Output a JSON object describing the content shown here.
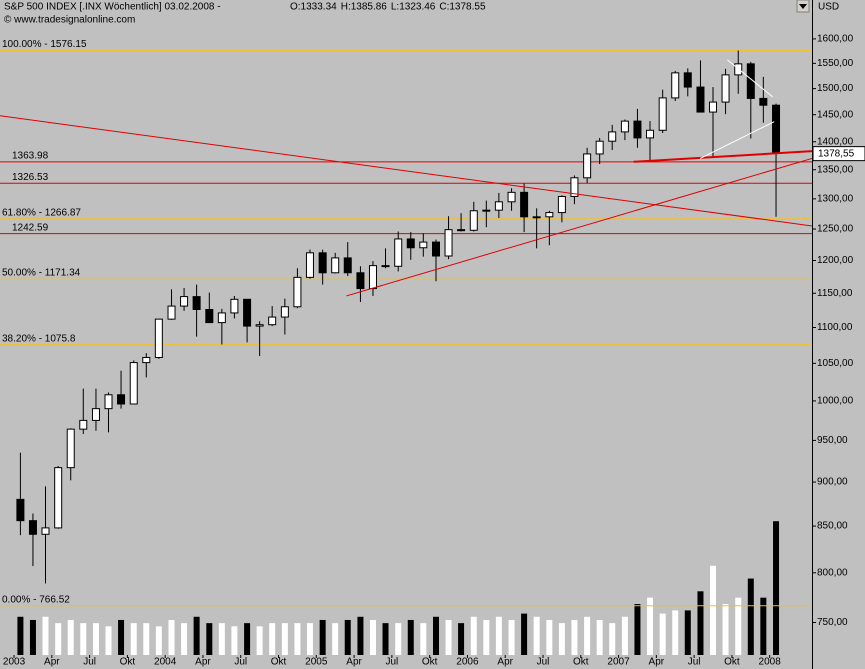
{
  "chart_data": {
    "type": "candlestick",
    "title": "S&P 500 INDEX [.INX  Wöchentlich] 03.02.2008 -",
    "quote": [
      "O:1333.34",
      "H:1385.86",
      "L:1323.46",
      "C:1378.55"
    ],
    "copyright": "© www.tradesignalonline.com",
    "ylabel": "USD",
    "log_scale": true,
    "xlim": [
      2002.907,
      2008.28
    ],
    "ylim": [
      719,
      1644
    ],
    "yticks": [
      {
        "value": 750,
        "label": "750,00"
      },
      {
        "value": 800,
        "label": "800,00"
      },
      {
        "value": 850,
        "label": "850,00"
      },
      {
        "value": 900,
        "label": "900,00"
      },
      {
        "value": 950,
        "label": "950,00"
      },
      {
        "value": 1000,
        "label": "1000,00"
      },
      {
        "value": 1050,
        "label": "1050,00"
      },
      {
        "value": 1100,
        "label": "1100,00"
      },
      {
        "value": 1150,
        "label": "1150,00"
      },
      {
        "value": 1200,
        "label": "1200,00"
      },
      {
        "value": 1250,
        "label": "1250,00"
      },
      {
        "value": 1300,
        "label": "1300,00"
      },
      {
        "value": 1350,
        "label": "1350,00"
      },
      {
        "value": 1400,
        "label": "1400,00"
      },
      {
        "value": 1450,
        "label": "1450,00"
      },
      {
        "value": 1500,
        "label": "1500,00"
      },
      {
        "value": 1550,
        "label": "1550,00"
      },
      {
        "value": 1600,
        "label": "1600,00"
      }
    ],
    "xticks": [
      2003,
      {
        "value": 2003.25,
        "label": "Apr"
      },
      {
        "value": 2003.5,
        "label": "Jul"
      },
      {
        "value": 2003.75,
        "label": "Okt"
      },
      2004,
      {
        "value": 2004.25,
        "label": "Apr"
      },
      {
        "value": 2004.5,
        "label": "Jul"
      },
      {
        "value": 2004.75,
        "label": "Okt"
      },
      2005,
      {
        "value": 2005.25,
        "label": "Apr"
      },
      {
        "value": 2005.5,
        "label": "Jul"
      },
      {
        "value": 2005.75,
        "label": "Okt"
      },
      2006,
      {
        "value": 2006.25,
        "label": "Apr"
      },
      {
        "value": 2006.5,
        "label": "Jul"
      },
      {
        "value": 2006.75,
        "label": "Okt"
      },
      2007,
      {
        "value": 2007.25,
        "label": "Apr"
      },
      {
        "value": 2007.5,
        "label": "Jul"
      },
      {
        "value": 2007.75,
        "label": "Okt"
      },
      2008
    ],
    "x": [
      2003.042,
      2003.125,
      2003.208,
      2003.292,
      2003.375,
      2003.458,
      2003.542,
      2003.625,
      2003.708,
      2003.792,
      2003.875,
      2003.958,
      2004.042,
      2004.125,
      2004.208,
      2004.292,
      2004.375,
      2004.458,
      2004.542,
      2004.625,
      2004.708,
      2004.792,
      2004.875,
      2004.958,
      2005.042,
      2005.125,
      2005.208,
      2005.292,
      2005.375,
      2005.458,
      2005.542,
      2005.625,
      2005.708,
      2005.792,
      2005.875,
      2005.958,
      2006.042,
      2006.125,
      2006.208,
      2006.292,
      2006.375,
      2006.458,
      2006.542,
      2006.625,
      2006.708,
      2006.792,
      2006.875,
      2006.958,
      2007.042,
      2007.125,
      2007.208,
      2007.292,
      2007.375,
      2007.458,
      2007.542,
      2007.625,
      2007.708,
      2007.792,
      2007.875,
      2007.958,
      2008.042
    ],
    "open": [
      880,
      856,
      841,
      848,
      917,
      964,
      975,
      990,
      1008,
      996,
      1051,
      1058,
      1112,
      1131,
      1145,
      1126,
      1107,
      1121,
      1141,
      1102,
      1104,
      1115,
      1130,
      1174,
      1212,
      1181,
      1204,
      1181,
      1157,
      1192,
      1191,
      1234,
      1220,
      1229,
      1207,
      1249,
      1248,
      1280,
      1281,
      1295,
      1311,
      1270,
      1270,
      1277,
      1304,
      1336,
      1378,
      1401,
      1418,
      1438,
      1407,
      1421,
      1482,
      1531,
      1503,
      1455,
      1474,
      1527,
      1549,
      1481,
      1468
    ],
    "high": [
      935,
      864,
      895,
      919,
      965,
      1016,
      1016,
      1011,
      1040,
      1054,
      1064,
      1112,
      1156,
      1158,
      1163,
      1151,
      1127,
      1146,
      1141,
      1109,
      1131,
      1142,
      1188,
      1217,
      1217,
      1212,
      1229,
      1191,
      1199,
      1219,
      1246,
      1245,
      1243,
      1233,
      1271,
      1276,
      1295,
      1297,
      1310,
      1318,
      1326,
      1284,
      1280,
      1306,
      1340,
      1389,
      1407,
      1431,
      1441,
      1461,
      1438,
      1498,
      1535,
      1540,
      1556,
      1503,
      1539,
      1576,
      1553,
      1523,
      1471
    ],
    "low": [
      840,
      807,
      789,
      847,
      902,
      958,
      962,
      960,
      990,
      996,
      1031,
      1056,
      1111,
      1124,
      1087,
      1107,
      1076,
      1113,
      1079,
      1060,
      1102,
      1090,
      1128,
      1172,
      1163,
      1180,
      1176,
      1137,
      1146,
      1188,
      1183,
      1201,
      1206,
      1168,
      1202,
      1246,
      1246,
      1253,
      1268,
      1280,
      1245,
      1219,
      1224,
      1261,
      1291,
      1327,
      1360,
      1385,
      1403,
      1389,
      1364,
      1416,
      1476,
      1485,
      1455,
      1371,
      1451,
      1490,
      1406,
      1435,
      1270
    ],
    "close": [
      856,
      841,
      848,
      917,
      964,
      975,
      990,
      1008,
      996,
      1051,
      1058,
      1112,
      1131,
      1145,
      1126,
      1107,
      1121,
      1141,
      1102,
      1104,
      1115,
      1130,
      1174,
      1212,
      1181,
      1204,
      1181,
      1157,
      1192,
      1191,
      1234,
      1220,
      1229,
      1207,
      1249,
      1248,
      1280,
      1281,
      1295,
      1311,
      1270,
      1270,
      1277,
      1304,
      1336,
      1378,
      1401,
      1418,
      1438,
      1407,
      1421,
      1482,
      1531,
      1503,
      1455,
      1474,
      1527,
      1549,
      1481,
      1468,
      1379
    ],
    "volume": {
      "ylim": [
        0,
        100
      ],
      "values": [
        6,
        5.5,
        6,
        5,
        5.5,
        5,
        5,
        4.5,
        5.5,
        5,
        5,
        4.5,
        5.5,
        5,
        6,
        5,
        5,
        4.5,
        5,
        4.5,
        5,
        5,
        5,
        5,
        5.5,
        5,
        5.5,
        6,
        5.5,
        5,
        5,
        5.5,
        5,
        6,
        5.5,
        5,
        6,
        5.5,
        6,
        5.5,
        6.5,
        6,
        5.5,
        5,
        5.5,
        6,
        5.5,
        5,
        6,
        8,
        9,
        6.5,
        7,
        7,
        10,
        14,
        8,
        9,
        12,
        9,
        21
      ]
    },
    "last_price": {
      "value": 1378.55,
      "label": "1378,55"
    },
    "levels": [
      {
        "value": 1576.15,
        "label": "100.00% - 1576.15",
        "color": "#f0c030"
      },
      {
        "value": 1266.87,
        "label": "61.80% - 1266.87",
        "color": "#f0c030"
      },
      {
        "value": 1171.34,
        "label": "50.00% - 1171.34",
        "color": "#f0c030"
      },
      {
        "value": 1075.8,
        "label": "38.20% - 1075.8",
        "color": "#f0c030"
      },
      {
        "value": 766.52,
        "label": "0.00% - 766.52",
        "color": "#f0c030"
      },
      {
        "value": 1363.98,
        "color": "#e00000"
      },
      {
        "value": 1326.53,
        "color": "#e00000"
      },
      {
        "value": 1242.59,
        "color": "#e00000"
      }
    ],
    "trendlines": [
      {
        "x": [
          2002.907,
          2008.28
        ],
        "y": [
          1448,
          1255
        ],
        "color": "#e00000",
        "width": 1
      },
      {
        "x": [
          2005.199,
          2008.28
        ],
        "y": [
          1146,
          1370
        ],
        "color": "#e00000",
        "width": 1
      },
      {
        "x": [
          2007.1,
          2008.28
        ],
        "y": [
          1364,
          1383
        ],
        "color": "#e00000",
        "width": 2
      },
      {
        "x": [
          2007.72,
          2008.02
        ],
        "y": [
          1557,
          1484
        ],
        "color": "#ffffff",
        "width": 1
      },
      {
        "x": [
          2007.54,
          2008.03
        ],
        "y": [
          1370,
          1437
        ],
        "color": "#ffffff",
        "width": 1
      }
    ]
  }
}
